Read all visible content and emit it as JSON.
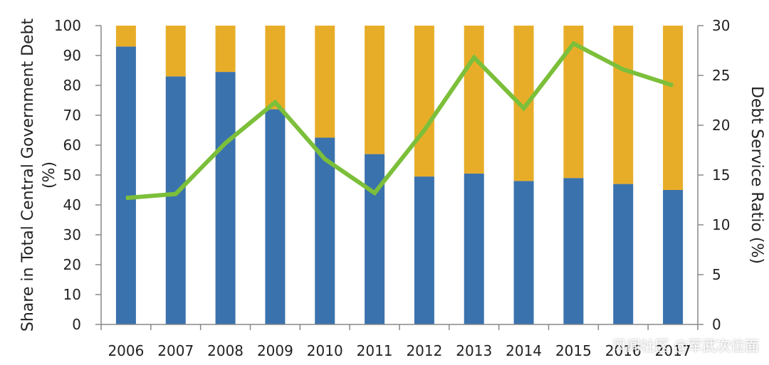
{
  "chart_data": {
    "type": "bar",
    "stacked": true,
    "categories": [
      "2006",
      "2007",
      "2008",
      "2009",
      "2010",
      "2011",
      "2012",
      "2013",
      "2014",
      "2015",
      "2016",
      "2017"
    ],
    "series": [
      {
        "type": "bar",
        "axis": "left",
        "color": "#3a72ad",
        "values": [
          93,
          83,
          84.5,
          72,
          62.5,
          57,
          49.5,
          50.5,
          48,
          49,
          47,
          45
        ]
      },
      {
        "type": "bar",
        "axis": "left",
        "color": "#e8ad28",
        "values": [
          7,
          17,
          15.5,
          28,
          37.5,
          43,
          50.5,
          49.5,
          52,
          51,
          53,
          55
        ]
      },
      {
        "type": "line",
        "axis": "right",
        "color": "#7cbf3a",
        "values": [
          12.7,
          13.1,
          18.2,
          22.3,
          16.6,
          13.2,
          19.5,
          26.8,
          21.7,
          28.2,
          25.6,
          24.0
        ]
      }
    ],
    "ylabel": "Share in Total Central Government Debt (%)",
    "y2label": "Debt Service Ratio (%)",
    "ylim": [
      0,
      100
    ],
    "y2lim": [
      0,
      30
    ],
    "yticks": [
      "0",
      "10",
      "20",
      "30",
      "40",
      "50",
      "60",
      "70",
      "80",
      "90",
      "100"
    ],
    "y2ticks": [
      "0",
      "5",
      "10",
      "15",
      "20",
      "25",
      "30"
    ],
    "grid": false,
    "legend": "none"
  },
  "watermark": "风闻社区 @军武次位面"
}
